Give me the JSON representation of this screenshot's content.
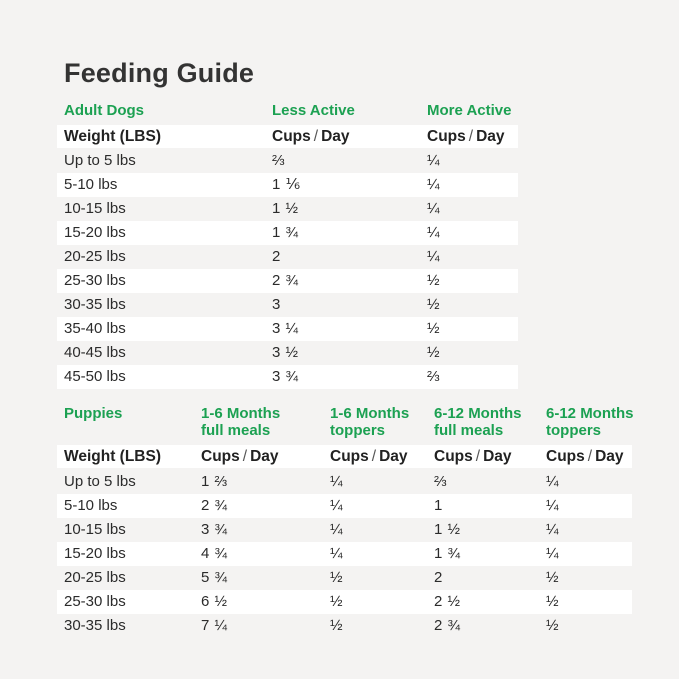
{
  "page": {
    "title": "Feeding Guide",
    "background_color": "#f4f3f2",
    "row_highlight_color": "#ffffff",
    "accent_green": "#1ca152",
    "text_color": "#2d2d2d"
  },
  "labels": {
    "cups": "Cups",
    "slash": "/",
    "day": "Day"
  },
  "adult_table": {
    "section_label": "Adult Dogs",
    "less_active_label": "Less Active",
    "more_active_label": "More Active",
    "weight_header": "Weight (LBS)",
    "rows": [
      {
        "weight": "Up to 5 lbs",
        "less_active": "⅔",
        "more_active": "¼"
      },
      {
        "weight": "5-10 lbs",
        "less_active": "1 ⅙",
        "more_active": "¼"
      },
      {
        "weight": "10-15 lbs",
        "less_active": "1 ½",
        "more_active": "¼"
      },
      {
        "weight": "15-20 lbs",
        "less_active": "1 ¾",
        "more_active": "¼"
      },
      {
        "weight": "20-25 lbs",
        "less_active": "2",
        "more_active": "¼"
      },
      {
        "weight": "25-30 lbs",
        "less_active": "2 ¾",
        "more_active": "½"
      },
      {
        "weight": "30-35 lbs",
        "less_active": "3",
        "more_active": "½"
      },
      {
        "weight": "35-40 lbs",
        "less_active": "3 ¼",
        "more_active": "½"
      },
      {
        "weight": "40-45 lbs",
        "less_active": "3 ½",
        "more_active": "½"
      },
      {
        "weight": "45-50 lbs",
        "less_active": "3 ¾",
        "more_active": "⅔"
      }
    ]
  },
  "puppies_table": {
    "section_label": "Puppies",
    "column_headers": [
      {
        "line1": "1-6 Months",
        "line2": "full meals"
      },
      {
        "line1": "1-6 Months",
        "line2": "toppers"
      },
      {
        "line1": "6-12 Months",
        "line2": "full meals"
      },
      {
        "line1": "6-12 Months",
        "line2": "toppers"
      }
    ],
    "weight_header": "Weight (LBS)",
    "rows": [
      {
        "weight": "Up to 5 lbs",
        "values": [
          "1 ⅔",
          "¼",
          "⅔",
          "¼"
        ]
      },
      {
        "weight": "5-10 lbs",
        "values": [
          "2 ¾",
          "¼",
          "1",
          "¼"
        ]
      },
      {
        "weight": "10-15 lbs",
        "values": [
          "3 ¾",
          "¼",
          "1 ½",
          "¼"
        ]
      },
      {
        "weight": "15-20 lbs",
        "values": [
          "4 ¾",
          "¼",
          "1 ¾",
          "¼"
        ]
      },
      {
        "weight": "20-25 lbs",
        "values": [
          "5 ¾",
          "½",
          "2",
          "½"
        ]
      },
      {
        "weight": "25-30 lbs",
        "values": [
          "6 ½",
          "½",
          "2 ½",
          "½"
        ]
      },
      {
        "weight": "30-35 lbs",
        "values": [
          "7 ¼",
          "½",
          "2 ¾",
          "½"
        ]
      }
    ]
  }
}
